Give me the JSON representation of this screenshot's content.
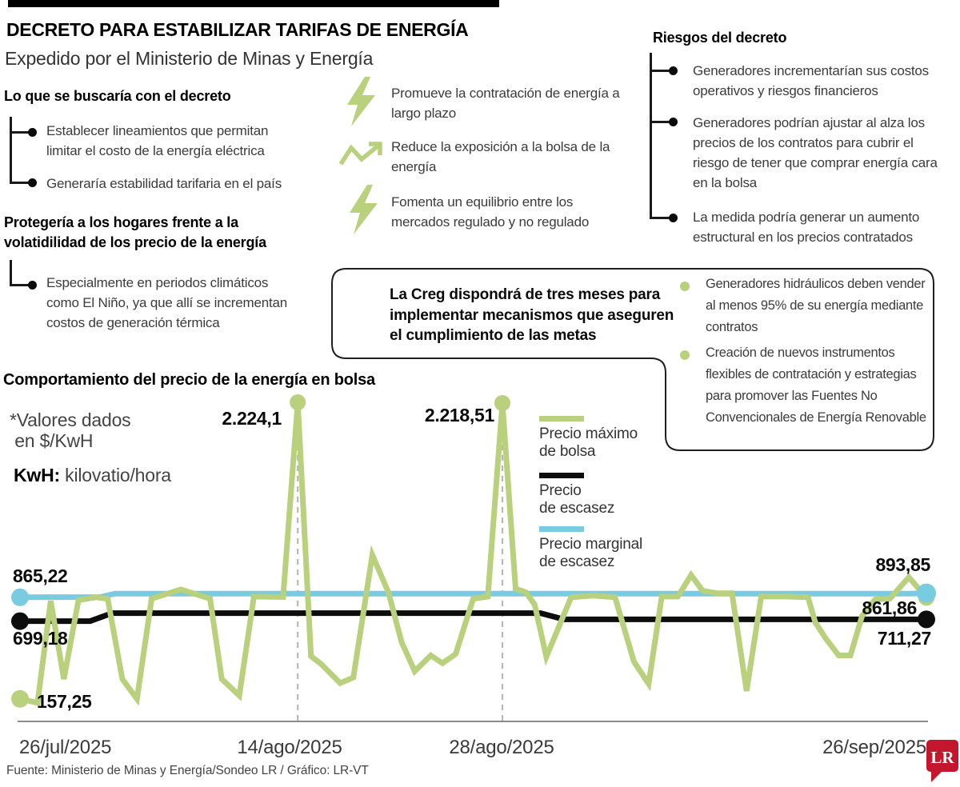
{
  "colors": {
    "green": "#b9d07c",
    "blue": "#79cbe0",
    "line_black": "#0d0d0d",
    "logo_red": "#c2172c",
    "guide_gray": "#b3b3b3",
    "axis_gray": "#8c8c8c"
  },
  "header": {
    "title": "DECRETO PARA ESTABILIZAR TARIFAS DE ENERGÍA",
    "subtitle": "Expedido por el Ministerio de Minas y Energía"
  },
  "goals": {
    "heading": "Lo que se buscaría con el decreto",
    "bullets": [
      "Establecer lineamientos que permitan\nlimitar el costo de la energía eléctrica",
      "Generaría estabilidad tarifaria en el país"
    ]
  },
  "protection": {
    "heading": "Protegería a los hogares frente a la\nvolatidilidad de los precio de la energía",
    "bullets": [
      "Especialmente en periodos climáticos\ncomo El Niño, ya que allí se incrementan\ncostos de generación térmica"
    ]
  },
  "benefits": [
    {
      "icon": "lightning-icon",
      "text": "Promueve la contratación de energía a\nlargo plazo"
    },
    {
      "icon": "trend-arrow-icon",
      "text": "Reduce la exposición a la bolsa de la\nenergía"
    },
    {
      "icon": "lightning-icon",
      "text": "Fomenta un equilibrio entre los\nmercados regulado y no regulado"
    }
  ],
  "risks": {
    "heading": "Riesgos del decreto",
    "bullets": [
      "Generadores incrementarían sus costos\noperativos y riesgos financieros",
      "Generadores podrían ajustar al alza los\nprecios de los contratos para cubrir el\nriesgo de tener que comprar energía cara\nen la bolsa",
      "La medida podría generar un aumento\nestructural en los precios contratados"
    ]
  },
  "creg_box": {
    "statement": "La Creg dispondrá de tres meses para\nimplementar mecanismos que aseguren\nel cumplimiento de las metas",
    "bullets": [
      "Generadores hidráulicos deben vender\nal menos 95% de su energía mediante\ncontratos",
      "Creación de nuevos instrumentos\nflexibles de contratación y estrategias\npara promover las Fuentes No\nConvencionales de Energía Renovable"
    ]
  },
  "chart_data": {
    "type": "line",
    "title": "Comportamiento del precio de la energía en bolsa",
    "note": "*Valores dados\n en $/KwH",
    "unit_term": "KwH:",
    "unit_definition": " kilovatio/hora",
    "x_range_days": [
      0,
      62
    ],
    "y_range": [
      0,
      2300
    ],
    "guides_days": [
      19,
      33
    ],
    "grid": "off",
    "legend_position": "center-top",
    "x_ticks": [
      {
        "day": 0,
        "label": "26/jul/2025"
      },
      {
        "day": 19,
        "label": "14/ago/2025"
      },
      {
        "day": 33,
        "label": "28/ago/2025"
      },
      {
        "day": 62,
        "label": "26/sep/2025"
      }
    ],
    "series": [
      {
        "name": "Precio máximo de bolsa",
        "legend_label": "Precio máximo\nde bolsa",
        "color": "#b9d07c",
        "start_label": "157,25",
        "end_label": "861,86",
        "peaks": [
          {
            "day": 19,
            "value": 2224.1,
            "label": "2.224,1"
          },
          {
            "day": 33,
            "value": 2218.51,
            "label": "2.218,51"
          }
        ],
        "points": [
          [
            0,
            157.25
          ],
          [
            1.2,
            130
          ],
          [
            2.1,
            840
          ],
          [
            3,
            295
          ],
          [
            4,
            845
          ],
          [
            5.2,
            865
          ],
          [
            6,
            855
          ],
          [
            7,
            295
          ],
          [
            8,
            157
          ],
          [
            9,
            855
          ],
          [
            11,
            920
          ],
          [
            13,
            855
          ],
          [
            13.8,
            295
          ],
          [
            15,
            180
          ],
          [
            16,
            870
          ],
          [
            18,
            867
          ],
          [
            19,
            2224.1
          ],
          [
            19.9,
            455
          ],
          [
            20.6,
            400
          ],
          [
            21.9,
            267
          ],
          [
            22.8,
            306
          ],
          [
            24.1,
            1160
          ],
          [
            25.2,
            900
          ],
          [
            26.1,
            553
          ],
          [
            27,
            350
          ],
          [
            28.1,
            460
          ],
          [
            28.9,
            405
          ],
          [
            29.8,
            470
          ],
          [
            31,
            855
          ],
          [
            32,
            870
          ],
          [
            33,
            2218.51
          ],
          [
            33.9,
            925
          ],
          [
            34.6,
            900
          ],
          [
            35.2,
            815
          ],
          [
            36,
            450
          ],
          [
            37.7,
            865
          ],
          [
            39.2,
            877
          ],
          [
            40.7,
            865
          ],
          [
            42,
            415
          ],
          [
            43,
            262
          ],
          [
            43.9,
            870
          ],
          [
            45,
            870
          ],
          [
            45.9,
            1020
          ],
          [
            46.7,
            910
          ],
          [
            47.7,
            893
          ],
          [
            48.7,
            893
          ],
          [
            49.7,
            212
          ],
          [
            50.7,
            870
          ],
          [
            52.4,
            870
          ],
          [
            53.9,
            865
          ],
          [
            54.4,
            690
          ],
          [
            55.1,
            580
          ],
          [
            56,
            460
          ],
          [
            56.8,
            460
          ],
          [
            57.6,
            735
          ],
          [
            58.5,
            850
          ],
          [
            59.5,
            855
          ],
          [
            60.8,
            1005
          ],
          [
            62,
            861.86
          ]
        ]
      },
      {
        "name": "Precio de escasez",
        "legend_label": "Precio\nde escasez",
        "color": "#0d0d0d",
        "start_label": "699,18",
        "end_label": "711,27",
        "points": [
          [
            0,
            699.18
          ],
          [
            4.8,
            699.18
          ],
          [
            6.3,
            755
          ],
          [
            35.6,
            755
          ],
          [
            37.2,
            711.27
          ],
          [
            62,
            711.27
          ]
        ]
      },
      {
        "name": "Precio marginal de escasez",
        "legend_label": "Precio marginal\nde escasez",
        "color": "#79cbe0",
        "start_label": "865,22",
        "end_label": "893,85",
        "points": [
          [
            0,
            865.22
          ],
          [
            5.5,
            867
          ],
          [
            6.5,
            891
          ],
          [
            61,
            891
          ],
          [
            62,
            893.85
          ]
        ]
      }
    ]
  },
  "footer": {
    "source": "Fuente: Ministerio de Minas y Energía/Sondeo LR / Gráfico: LR-VT",
    "logo_text": "LR"
  }
}
